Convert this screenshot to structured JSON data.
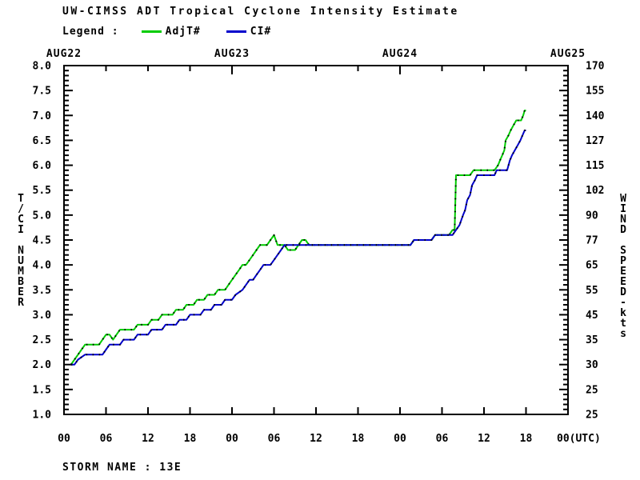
{
  "header": {
    "title": "UW-CIMSS ADT Tropical Cyclone Intensity Estimate",
    "legend_label": "Legend :",
    "legend_items": [
      {
        "label": "AdjT#",
        "color": "#00cc00"
      },
      {
        "label": "CI#",
        "color": "#0000cc"
      }
    ]
  },
  "footer": {
    "storm_name": "STORM NAME : 13E"
  },
  "chart_data": {
    "type": "line",
    "title": "UW-CIMSS ADT Tropical Cyclone Intensity Estimate",
    "grid": false,
    "legend_position": "top-left",
    "x_axis": {
      "unit": "hours UTC starting AUG22 00 UTC",
      "range_hours": [
        0,
        72
      ],
      "tick_interval_hours": 6,
      "tick_labels": [
        "00",
        "06",
        "12",
        "18",
        "00",
        "06",
        "12",
        "18",
        "00",
        "06",
        "12",
        "18",
        "00(UTC)"
      ],
      "day_labels": [
        {
          "hour": 0,
          "label": "AUG22"
        },
        {
          "hour": 24,
          "label": "AUG23"
        },
        {
          "hour": 48,
          "label": "AUG24"
        },
        {
          "hour": 72,
          "label": "AUG25"
        }
      ]
    },
    "y_axis_left": {
      "label": "T/CI NUMBER",
      "range": [
        1.0,
        8.0
      ],
      "major_step": 0.5,
      "minor_step": 0.1,
      "major_tick_labels": [
        "8.0",
        "7.5",
        "7.0",
        "6.5",
        "6.0",
        "5.5",
        "5.0",
        "4.5",
        "4.0",
        "3.5",
        "3.0",
        "2.5",
        "2.0",
        "1.5",
        "1.0"
      ]
    },
    "y_axis_right": {
      "label": "WIND SPEED-kts",
      "tick_labels_top_to_bottom": [
        "170",
        "155",
        "140",
        "127",
        "115",
        "102",
        "90",
        "77",
        "65",
        "55",
        "45",
        "35",
        "30",
        "25",
        "25"
      ]
    },
    "series": [
      {
        "name": "AdjT#",
        "color": "#00cc00",
        "points": [
          [
            1.0,
            2.0
          ],
          [
            1.5,
            2.1
          ],
          [
            2.0,
            2.2
          ],
          [
            2.5,
            2.3
          ],
          [
            3.0,
            2.4
          ],
          [
            5.0,
            2.4
          ],
          [
            5.5,
            2.5
          ],
          [
            6.0,
            2.6
          ],
          [
            6.5,
            2.6
          ],
          [
            7.0,
            2.5
          ],
          [
            7.5,
            2.6
          ],
          [
            8.0,
            2.7
          ],
          [
            10.0,
            2.7
          ],
          [
            10.5,
            2.8
          ],
          [
            12.0,
            2.8
          ],
          [
            12.5,
            2.9
          ],
          [
            13.5,
            2.9
          ],
          [
            14.0,
            3.0
          ],
          [
            15.5,
            3.0
          ],
          [
            16.0,
            3.1
          ],
          [
            17.0,
            3.1
          ],
          [
            17.5,
            3.2
          ],
          [
            18.5,
            3.2
          ],
          [
            19.0,
            3.3
          ],
          [
            20.0,
            3.3
          ],
          [
            20.5,
            3.4
          ],
          [
            21.5,
            3.4
          ],
          [
            22.0,
            3.5
          ],
          [
            23.0,
            3.5
          ],
          [
            23.5,
            3.6
          ],
          [
            24.0,
            3.7
          ],
          [
            24.5,
            3.8
          ],
          [
            25.0,
            3.9
          ],
          [
            25.5,
            4.0
          ],
          [
            26.0,
            4.0
          ],
          [
            26.5,
            4.1
          ],
          [
            27.0,
            4.2
          ],
          [
            27.5,
            4.3
          ],
          [
            28.0,
            4.4
          ],
          [
            29.0,
            4.4
          ],
          [
            29.5,
            4.5
          ],
          [
            30.0,
            4.6
          ],
          [
            30.5,
            4.4
          ],
          [
            31.5,
            4.4
          ],
          [
            32.0,
            4.3
          ],
          [
            33.0,
            4.3
          ],
          [
            33.5,
            4.4
          ],
          [
            34.0,
            4.5
          ],
          [
            34.5,
            4.5
          ],
          [
            35.0,
            4.4
          ],
          [
            49.5,
            4.4
          ],
          [
            50.0,
            4.5
          ],
          [
            52.5,
            4.5
          ],
          [
            53.0,
            4.6
          ],
          [
            55.0,
            4.6
          ],
          [
            55.5,
            4.7
          ],
          [
            55.8,
            4.7
          ],
          [
            56.0,
            5.8
          ],
          [
            58.0,
            5.8
          ],
          [
            58.5,
            5.9
          ],
          [
            61.5,
            5.9
          ],
          [
            62.0,
            6.0
          ],
          [
            62.3,
            6.1
          ],
          [
            62.6,
            6.2
          ],
          [
            62.9,
            6.3
          ],
          [
            63.1,
            6.5
          ],
          [
            63.5,
            6.6
          ],
          [
            63.8,
            6.7
          ],
          [
            64.2,
            6.8
          ],
          [
            64.6,
            6.9
          ],
          [
            65.3,
            6.9
          ],
          [
            65.6,
            7.0
          ],
          [
            65.8,
            7.1
          ],
          [
            66.0,
            7.1
          ]
        ]
      },
      {
        "name": "CI#",
        "color": "#0000cc",
        "points": [
          [
            1.0,
            2.0
          ],
          [
            1.5,
            2.0
          ],
          [
            2.0,
            2.1
          ],
          [
            3.0,
            2.2
          ],
          [
            5.5,
            2.2
          ],
          [
            6.0,
            2.3
          ],
          [
            6.5,
            2.4
          ],
          [
            8.0,
            2.4
          ],
          [
            8.5,
            2.5
          ],
          [
            10.0,
            2.5
          ],
          [
            10.5,
            2.6
          ],
          [
            12.0,
            2.6
          ],
          [
            12.5,
            2.7
          ],
          [
            14.0,
            2.7
          ],
          [
            14.5,
            2.8
          ],
          [
            16.0,
            2.8
          ],
          [
            16.5,
            2.9
          ],
          [
            17.5,
            2.9
          ],
          [
            18.0,
            3.0
          ],
          [
            19.5,
            3.0
          ],
          [
            20.0,
            3.1
          ],
          [
            21.0,
            3.1
          ],
          [
            21.5,
            3.2
          ],
          [
            22.5,
            3.2
          ],
          [
            23.0,
            3.3
          ],
          [
            24.0,
            3.3
          ],
          [
            24.5,
            3.4
          ],
          [
            25.5,
            3.5
          ],
          [
            26.0,
            3.6
          ],
          [
            26.5,
            3.7
          ],
          [
            27.0,
            3.7
          ],
          [
            27.5,
            3.8
          ],
          [
            28.0,
            3.9
          ],
          [
            28.5,
            4.0
          ],
          [
            29.5,
            4.0
          ],
          [
            30.0,
            4.1
          ],
          [
            30.5,
            4.2
          ],
          [
            31.0,
            4.3
          ],
          [
            31.5,
            4.4
          ],
          [
            49.5,
            4.4
          ],
          [
            50.0,
            4.5
          ],
          [
            52.5,
            4.5
          ],
          [
            53.0,
            4.6
          ],
          [
            55.5,
            4.6
          ],
          [
            56.0,
            4.7
          ],
          [
            56.5,
            4.8
          ],
          [
            57.0,
            5.0
          ],
          [
            57.3,
            5.1
          ],
          [
            57.6,
            5.3
          ],
          [
            58.0,
            5.4
          ],
          [
            58.3,
            5.6
          ],
          [
            58.7,
            5.7
          ],
          [
            59.0,
            5.8
          ],
          [
            61.5,
            5.8
          ],
          [
            61.8,
            5.9
          ],
          [
            63.3,
            5.9
          ],
          [
            63.7,
            6.1
          ],
          [
            64.0,
            6.2
          ],
          [
            64.4,
            6.3
          ],
          [
            64.8,
            6.4
          ],
          [
            65.2,
            6.5
          ],
          [
            65.5,
            6.6
          ],
          [
            65.8,
            6.7
          ],
          [
            66.0,
            6.7
          ]
        ]
      }
    ]
  }
}
